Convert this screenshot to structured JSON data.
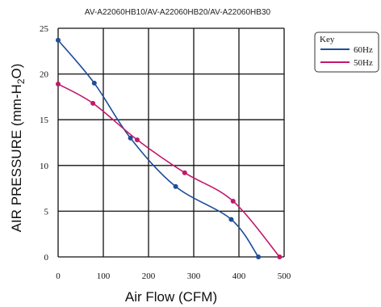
{
  "chart_data": {
    "type": "line",
    "title": "AV-A22060HB10/AV-A22060HB20/AV-A22060HB30",
    "xlabel": "Air Flow (CFM)",
    "ylabel": "AIR PRESSURE (mm-H",
    "ylabel_sub": "2",
    "ylabel_tail": "O)",
    "xlim": [
      0,
      500
    ],
    "ylim": [
      0,
      25
    ],
    "x_ticks": [
      0,
      100,
      200,
      300,
      400,
      500
    ],
    "y_ticks": [
      0,
      5,
      10,
      15,
      20,
      25
    ],
    "grid": true,
    "legend": {
      "title": "Key",
      "placement": "top-right, outside plot"
    },
    "series": [
      {
        "name": "60Hz",
        "color": "#1f4e99",
        "points": [
          [
            0,
            23.7
          ],
          [
            80,
            19.0
          ],
          [
            160,
            13.0
          ],
          [
            260,
            7.7
          ],
          [
            383,
            4.1
          ],
          [
            443,
            0
          ]
        ]
      },
      {
        "name": "50Hz",
        "color": "#c2186b",
        "points": [
          [
            0,
            18.9
          ],
          [
            77,
            16.8
          ],
          [
            175,
            12.8
          ],
          [
            280,
            9.2
          ],
          [
            387,
            6.1
          ],
          [
            490,
            0
          ]
        ]
      }
    ]
  }
}
